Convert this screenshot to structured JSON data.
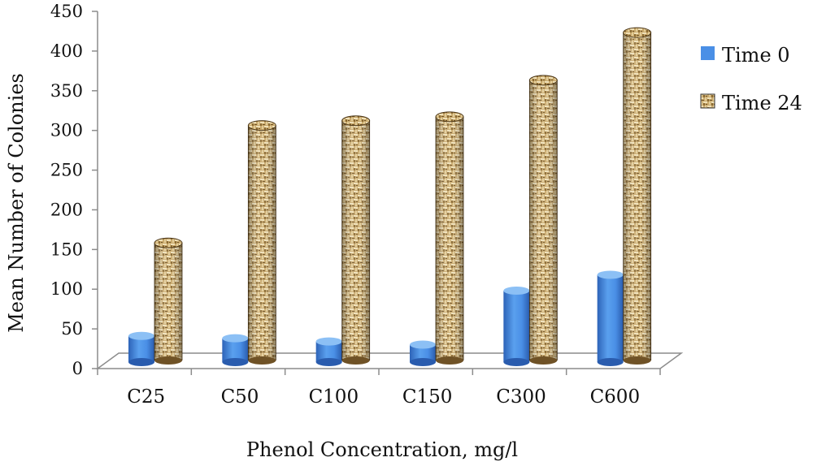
{
  "chart_data": {
    "type": "bar",
    "title": "",
    "xlabel": "Phenol Concentration, mg/l",
    "ylabel": "Mean Number of Colonies",
    "ylim": [
      0,
      450
    ],
    "yticks": [
      0,
      50,
      100,
      150,
      200,
      250,
      300,
      350,
      400,
      450
    ],
    "categories": [
      "C25",
      "C50",
      "C100",
      "C150",
      "C300",
      "C600"
    ],
    "series": [
      {
        "name": "Time 0",
        "values": [
          33,
          30,
          26,
          22,
          90,
          110
        ]
      },
      {
        "name": "Time 24",
        "values": [
          148,
          296,
          302,
          307,
          353,
          413
        ]
      }
    ],
    "legend_position": "right",
    "grid": false
  },
  "colors": {
    "time0_fill": "#4a8fe6",
    "time0_top": "#8cc0f5",
    "time0_dark": "#2d63b8",
    "time24_base": "#c7a76a",
    "time24_dark": "#7a5d2c",
    "time24_light": "#eadbb4",
    "axis": "#8c8c8c"
  }
}
